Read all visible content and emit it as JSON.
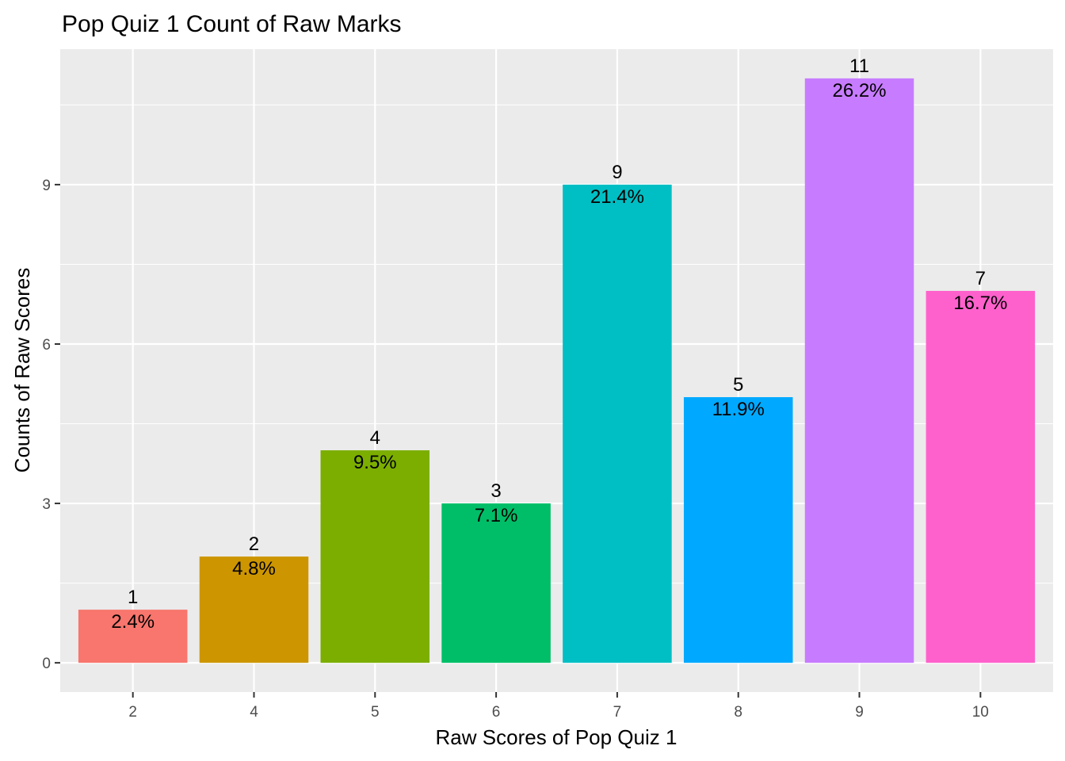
{
  "chart_data": {
    "type": "bar",
    "title": "Pop Quiz 1 Count of Raw Marks",
    "xlabel": "Raw Scores of Pop Quiz 1",
    "ylabel": "Counts of Raw Scores",
    "categories": [
      "2",
      "4",
      "5",
      "6",
      "7",
      "8",
      "9",
      "10"
    ],
    "values": [
      1,
      2,
      4,
      3,
      9,
      5,
      11,
      7
    ],
    "percent_labels": [
      "2.4%",
      "4.8%",
      "9.5%",
      "7.1%",
      "21.4%",
      "11.9%",
      "26.2%",
      "16.7%"
    ],
    "count_labels": [
      "1",
      "2",
      "4",
      "3",
      "9",
      "5",
      "11",
      "7"
    ],
    "colors": [
      "#F8766D",
      "#CD9600",
      "#7CAE00",
      "#00BE67",
      "#00BFC4",
      "#00A9FF",
      "#C77CFF",
      "#FF61CC"
    ],
    "yticks": [
      0,
      3,
      6,
      9
    ],
    "ytick_labels": [
      "0",
      "3",
      "6",
      "9"
    ],
    "ylim": [
      -0.55,
      11.55
    ],
    "grid": true,
    "legend": "none",
    "panel_background": "#EBEBEB",
    "grid_color": "#FFFFFF"
  }
}
